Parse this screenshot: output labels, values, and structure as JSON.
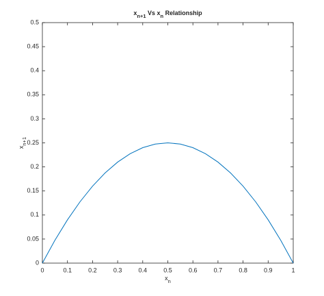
{
  "chart_data": {
    "type": "line",
    "title": [
      {
        "text": "x",
        "sub": false
      },
      {
        "text": "n+1",
        "sub": true
      },
      {
        "text": " Vs x",
        "sub": false
      },
      {
        "text": "n",
        "sub": true
      },
      {
        "text": " Relationship",
        "sub": false
      }
    ],
    "xlabel": [
      {
        "text": "x",
        "sub": false
      },
      {
        "text": "n",
        "sub": true
      }
    ],
    "ylabel": [
      {
        "text": "x",
        "sub": false
      },
      {
        "text": "n+1",
        "sub": true
      }
    ],
    "x": [
      0,
      0.05,
      0.1,
      0.15,
      0.2,
      0.25,
      0.3,
      0.35,
      0.4,
      0.45,
      0.5,
      0.55,
      0.6,
      0.65,
      0.7,
      0.75,
      0.8,
      0.85,
      0.9,
      0.95,
      1
    ],
    "values": [
      0,
      0.0475,
      0.09,
      0.1275,
      0.16,
      0.1875,
      0.21,
      0.2275,
      0.24,
      0.2475,
      0.25,
      0.2475,
      0.24,
      0.2275,
      0.21,
      0.1875,
      0.16,
      0.1275,
      0.09,
      0.0475,
      0
    ],
    "color": "#0072bd",
    "xlim": [
      0,
      1
    ],
    "xticks": [
      0,
      0.1,
      0.2,
      0.3,
      0.4,
      0.5,
      0.6,
      0.7,
      0.8,
      0.9,
      1
    ],
    "ylim": [
      0,
      0.5
    ],
    "yticks": [
      0,
      0.05,
      0.1,
      0.15,
      0.2,
      0.25,
      0.3,
      0.35,
      0.4,
      0.45,
      0.5
    ],
    "grid": false
  }
}
